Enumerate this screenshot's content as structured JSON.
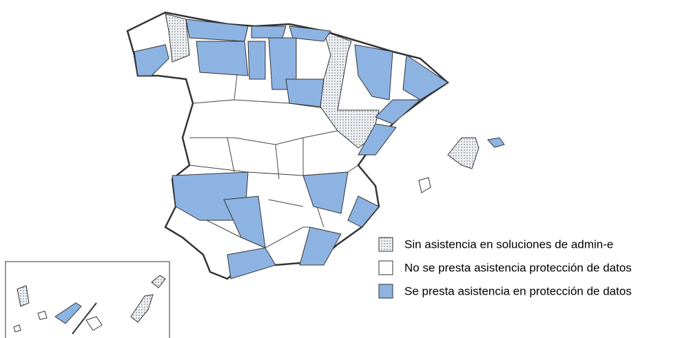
{
  "legend": [
    {
      "label": "Sin asistencia en soluciones de admin-e"
    },
    {
      "label": "No se presta asistencia protección de datos"
    },
    {
      "label": "Se presta asistencia en protección de datos"
    }
  ]
}
